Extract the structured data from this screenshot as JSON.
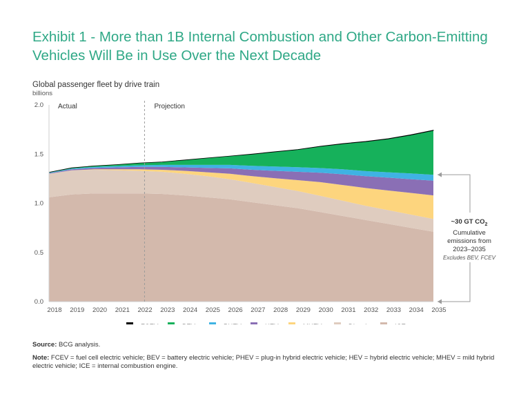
{
  "header": {
    "title": "Exhibit 1 - More than 1B Internal Combustion and Other Carbon-Emitting Vehicles Will Be in Use Over the Next Decade"
  },
  "chart_data": {
    "type": "area",
    "title": "Global passenger fleet by drive train",
    "ylabel": "billions",
    "ylim": [
      0,
      2.0
    ],
    "yticks": [
      "0.0",
      "0.5",
      "1.0",
      "1.5",
      "2.0"
    ],
    "categories": [
      "2018",
      "2019",
      "2020",
      "2021",
      "2022",
      "2023",
      "2024",
      "2025",
      "2026",
      "2027",
      "2028",
      "2029",
      "2030",
      "2031",
      "2032",
      "2033",
      "2034",
      "2035"
    ],
    "region_labels": {
      "actual": "Actual",
      "projection": "Projection"
    },
    "stack_order": [
      "ICE",
      "Diesel",
      "MHEV",
      "HEV",
      "PHEV",
      "BEV",
      "FCEV"
    ],
    "series": [
      {
        "name": "ICE",
        "color": "#d3b9ac",
        "values": [
          1.06,
          1.09,
          1.1,
          1.1,
          1.1,
          1.095,
          1.08,
          1.06,
          1.04,
          1.01,
          0.98,
          0.95,
          0.91,
          0.87,
          0.83,
          0.79,
          0.75,
          0.71
        ]
      },
      {
        "name": "Diesel",
        "color": "#dfccbf",
        "values": [
          0.24,
          0.245,
          0.24,
          0.235,
          0.23,
          0.225,
          0.22,
          0.215,
          0.205,
          0.195,
          0.185,
          0.175,
          0.165,
          0.155,
          0.145,
          0.14,
          0.135,
          0.13
        ]
      },
      {
        "name": "MHEV",
        "color": "#fdd57e",
        "values": [
          0,
          0,
          0.005,
          0.01,
          0.015,
          0.02,
          0.03,
          0.04,
          0.055,
          0.07,
          0.09,
          0.11,
          0.14,
          0.16,
          0.18,
          0.2,
          0.22,
          0.24
        ]
      },
      {
        "name": "HEV",
        "color": "#8a6fb5",
        "values": [
          0.005,
          0.01,
          0.015,
          0.02,
          0.025,
          0.03,
          0.035,
          0.045,
          0.055,
          0.065,
          0.075,
          0.085,
          0.095,
          0.11,
          0.12,
          0.13,
          0.14,
          0.15
        ]
      },
      {
        "name": "PHEV",
        "color": "#3fb3e3",
        "values": [
          0.005,
          0.008,
          0.01,
          0.013,
          0.016,
          0.02,
          0.025,
          0.03,
          0.035,
          0.04,
          0.043,
          0.046,
          0.048,
          0.05,
          0.052,
          0.055,
          0.058,
          0.06
        ]
      },
      {
        "name": "BEV",
        "color": "#16b15b",
        "values": [
          0.005,
          0.007,
          0.01,
          0.015,
          0.024,
          0.03,
          0.05,
          0.07,
          0.09,
          0.12,
          0.15,
          0.18,
          0.22,
          0.26,
          0.3,
          0.34,
          0.39,
          0.45
        ]
      },
      {
        "name": "FCEV",
        "color": "#000000",
        "values": [
          0,
          0,
          0,
          0,
          0,
          0,
          0,
          0,
          0,
          0.001,
          0.001,
          0.001,
          0.002,
          0.002,
          0.002,
          0.002,
          0.003,
          0.003
        ]
      }
    ],
    "annotation": {
      "headline": "~30 GT CO",
      "subscript": "2",
      "line1": "Cumulative",
      "line2": "emissions from",
      "line3": "2023–2035",
      "footnote": "Excludes BEV, FCEV"
    }
  },
  "legend": [
    {
      "label": "FCEV",
      "color": "#000000"
    },
    {
      "label": "BEV",
      "color": "#16b15b"
    },
    {
      "label": "PHEV",
      "color": "#3fb3e3"
    },
    {
      "label": "HEV",
      "color": "#8a6fb5"
    },
    {
      "label": "MHEV",
      "color": "#fdd57e"
    },
    {
      "label": "Diesel",
      "color": "#dfccbf"
    },
    {
      "label": "ICE",
      "color": "#d3b9ac"
    }
  ],
  "footer": {
    "source_label": "Source:",
    "source_text": "BCG analysis.",
    "note_label": "Note:",
    "note_text": "FCEV = fuel cell electric vehicle; BEV = battery electric vehicle; PHEV = plug-in hybrid electric vehicle; HEV = hybrid electric vehicle; MHEV = mild hybrid electric vehicle; ICE = internal combustion engine."
  }
}
